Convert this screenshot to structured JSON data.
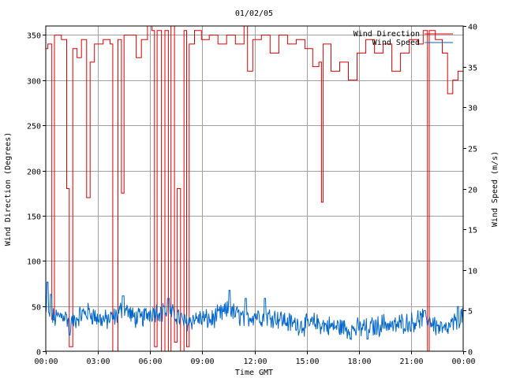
{
  "chart_data": {
    "type": "line",
    "title": "01/02/05",
    "xlabel": "Time GMT",
    "ylabel_left": "Wind Direction (Degrees)",
    "ylabel_right": "Wind Speed (m/s)",
    "x_ticks": [
      "00:00",
      "03:00",
      "06:00",
      "09:00",
      "12:00",
      "15:00",
      "18:00",
      "21:00",
      "00:00"
    ],
    "x_range_hours": [
      0,
      24
    ],
    "y_left_range": [
      0,
      360
    ],
    "y_left_ticks": [
      0,
      50,
      100,
      150,
      200,
      250,
      300,
      350
    ],
    "y_right_range": [
      0,
      40
    ],
    "y_right_ticks": [
      0,
      5,
      10,
      15,
      20,
      25,
      30,
      35,
      40
    ],
    "grid": true,
    "legend_position": "top-right",
    "colors": {
      "direction": "#e00000",
      "speed": "#0066cc",
      "grid": "#a0a0a0"
    },
    "series": [
      {
        "name": "Wind Direction",
        "axis": "left",
        "style": "step",
        "points": [
          [
            0.0,
            335
          ],
          [
            0.12,
            340
          ],
          [
            0.35,
            35
          ],
          [
            0.5,
            350
          ],
          [
            0.9,
            345
          ],
          [
            1.2,
            180
          ],
          [
            1.35,
            5
          ],
          [
            1.55,
            335
          ],
          [
            1.8,
            325
          ],
          [
            2.05,
            345
          ],
          [
            2.35,
            170
          ],
          [
            2.55,
            320
          ],
          [
            2.8,
            340
          ],
          [
            3.3,
            345
          ],
          [
            3.7,
            340
          ],
          [
            3.85,
            0
          ],
          [
            4.15,
            345
          ],
          [
            4.35,
            175
          ],
          [
            4.5,
            350
          ],
          [
            5.2,
            325
          ],
          [
            5.5,
            345
          ],
          [
            5.85,
            360
          ],
          [
            6.1,
            355
          ],
          [
            6.25,
            5
          ],
          [
            6.4,
            355
          ],
          [
            6.65,
            0
          ],
          [
            6.85,
            355
          ],
          [
            7.05,
            0
          ],
          [
            7.2,
            360
          ],
          [
            7.4,
            10
          ],
          [
            7.55,
            180
          ],
          [
            7.75,
            0
          ],
          [
            7.95,
            355
          ],
          [
            8.1,
            5
          ],
          [
            8.25,
            340
          ],
          [
            8.55,
            355
          ],
          [
            8.95,
            345
          ],
          [
            9.4,
            350
          ],
          [
            9.9,
            340
          ],
          [
            10.4,
            350
          ],
          [
            10.9,
            340
          ],
          [
            11.4,
            360
          ],
          [
            11.6,
            310
          ],
          [
            11.9,
            345
          ],
          [
            12.4,
            350
          ],
          [
            12.9,
            330
          ],
          [
            13.4,
            350
          ],
          [
            13.9,
            340
          ],
          [
            14.4,
            345
          ],
          [
            14.9,
            335
          ],
          [
            15.35,
            315
          ],
          [
            15.7,
            320
          ],
          [
            15.85,
            165
          ],
          [
            15.95,
            340
          ],
          [
            16.4,
            310
          ],
          [
            16.9,
            320
          ],
          [
            17.4,
            300
          ],
          [
            17.9,
            330
          ],
          [
            18.4,
            345
          ],
          [
            18.9,
            330
          ],
          [
            19.4,
            340
          ],
          [
            19.9,
            310
          ],
          [
            20.4,
            330
          ],
          [
            20.9,
            345
          ],
          [
            21.4,
            340
          ],
          [
            21.7,
            355
          ],
          [
            21.95,
            0
          ],
          [
            22.05,
            355
          ],
          [
            22.4,
            345
          ],
          [
            22.8,
            330
          ],
          [
            23.1,
            285
          ],
          [
            23.4,
            300
          ],
          [
            23.7,
            310
          ],
          [
            24.0,
            340
          ]
        ]
      },
      {
        "name": "Wind Speed",
        "axis": "right",
        "style": "line",
        "base": [
          [
            0.0,
            4.5
          ],
          [
            0.5,
            4.0
          ],
          [
            1.0,
            4.5
          ],
          [
            1.5,
            3.5
          ],
          [
            2.0,
            4.5
          ],
          [
            2.5,
            4.8
          ],
          [
            3.0,
            4.0
          ],
          [
            3.5,
            3.8
          ],
          [
            4.0,
            4.2
          ],
          [
            4.5,
            5.5
          ],
          [
            5.0,
            4.2
          ],
          [
            5.5,
            4.0
          ],
          [
            6.0,
            4.8
          ],
          [
            6.5,
            5.0
          ],
          [
            7.0,
            4.5
          ],
          [
            7.5,
            4.5
          ],
          [
            8.0,
            3.5
          ],
          [
            8.5,
            4.0
          ],
          [
            9.0,
            4.0
          ],
          [
            9.5,
            3.8
          ],
          [
            10.0,
            4.5
          ],
          [
            10.5,
            5.0
          ],
          [
            11.0,
            4.5
          ],
          [
            11.5,
            4.0
          ],
          [
            12.0,
            4.5
          ],
          [
            12.5,
            4.2
          ],
          [
            13.0,
            4.3
          ],
          [
            13.5,
            4.0
          ],
          [
            14.0,
            3.5
          ],
          [
            14.5,
            3.3
          ],
          [
            15.0,
            3.2
          ],
          [
            15.5,
            3.5
          ],
          [
            16.0,
            3.2
          ],
          [
            16.5,
            3.0
          ],
          [
            17.0,
            3.0
          ],
          [
            17.5,
            2.6
          ],
          [
            18.0,
            2.8
          ],
          [
            18.5,
            3.0
          ],
          [
            19.0,
            3.0
          ],
          [
            19.5,
            3.5
          ],
          [
            20.0,
            3.0
          ],
          [
            20.5,
            3.5
          ],
          [
            21.0,
            3.5
          ],
          [
            21.5,
            4.0
          ],
          [
            22.0,
            4.0
          ],
          [
            22.5,
            3.0
          ],
          [
            23.0,
            2.5
          ],
          [
            23.5,
            3.5
          ],
          [
            24.0,
            4.5
          ]
        ],
        "peaks": [
          [
            0.1,
            8.5
          ],
          [
            0.3,
            7.0
          ],
          [
            1.35,
            2.0
          ],
          [
            4.45,
            6.8
          ],
          [
            6.8,
            5.5
          ],
          [
            7.05,
            6.5
          ],
          [
            10.55,
            7.5
          ],
          [
            11.5,
            6.5
          ],
          [
            12.6,
            6.5
          ],
          [
            18.5,
            1.5
          ],
          [
            21.8,
            5.0
          ],
          [
            23.7,
            5.5
          ]
        ]
      }
    ]
  }
}
